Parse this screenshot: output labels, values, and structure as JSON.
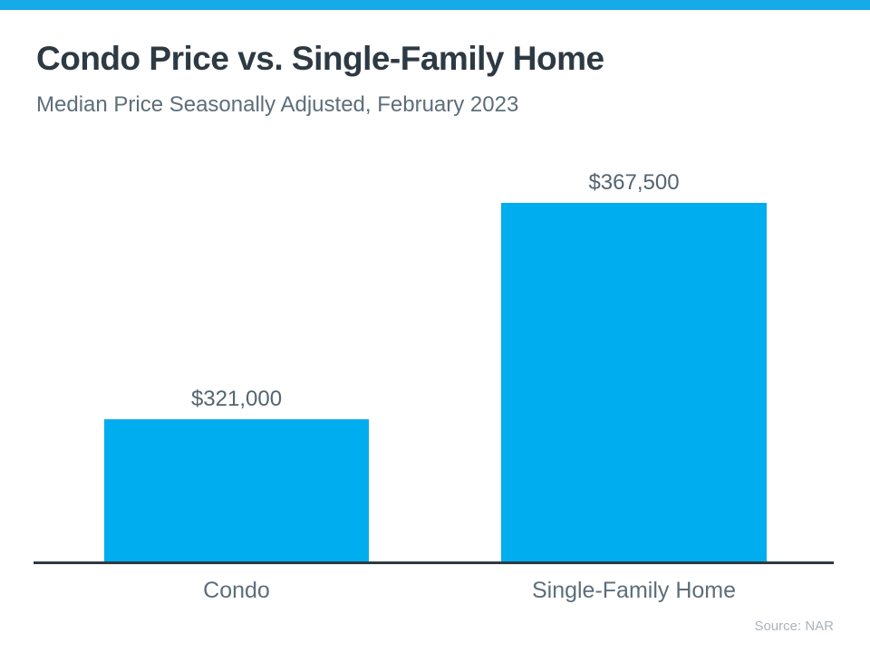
{
  "page": {
    "accent_color": "#18a9e9",
    "background_color": "#ffffff"
  },
  "chart_data": {
    "type": "bar",
    "title": "Condo Price vs. Single-Family Home",
    "subtitle": "Median Price Seasonally Adjusted, February 2023",
    "categories": [
      "Condo",
      "Single-Family Home"
    ],
    "values": [
      321000,
      367500
    ],
    "value_labels": [
      "$321,000",
      "$367,500"
    ],
    "source": "Source: NAR",
    "bar_color": "#00aeef",
    "axis_color": "#2e3a42",
    "ylim": [
      290500,
      370000
    ],
    "grid": false,
    "legend": false,
    "note": "y-axis baseline is not zero; bars labeled directly with values"
  }
}
